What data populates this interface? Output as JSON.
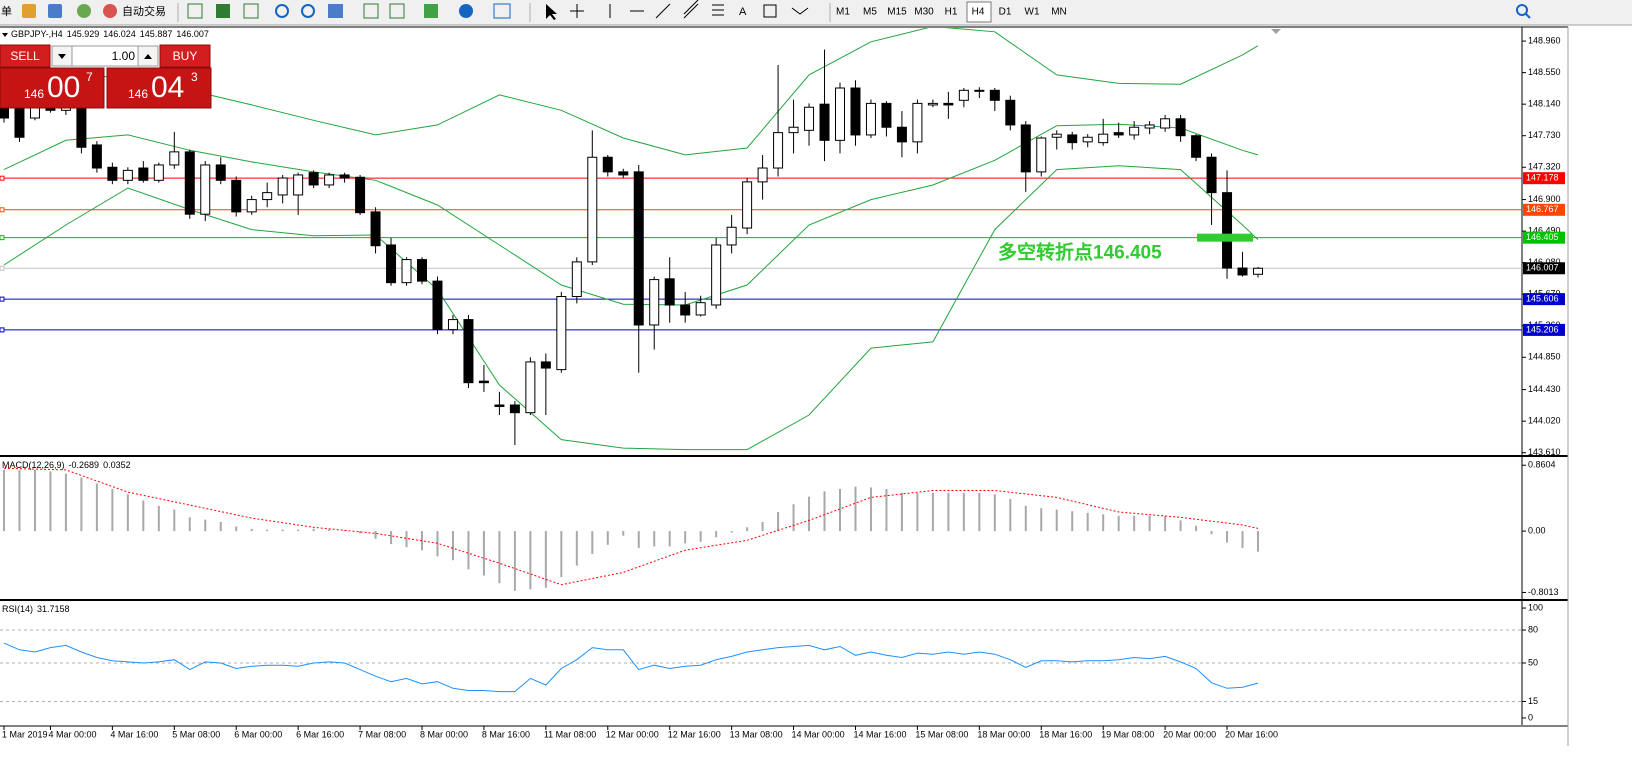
{
  "toolbar": {
    "menu_fragment": "单",
    "auto_trading": "自动交易",
    "timeframes": [
      "M1",
      "M5",
      "M15",
      "M30",
      "H1",
      "H4",
      "D1",
      "W1",
      "MN"
    ],
    "active_timeframe": "H4"
  },
  "trade_panel": {
    "sell": "SELL",
    "buy": "BUY",
    "lots": "1.00",
    "sell_price": {
      "big_figure": "146",
      "pips": "00",
      "fraction": "7"
    },
    "buy_price": {
      "big_figure": "146",
      "pips": "04",
      "fraction": "3"
    }
  },
  "chart_data": [
    {
      "type": "candlestick",
      "title": "GBPJPY-,H4",
      "categories": [
        "1 Mar 2019",
        null,
        null,
        "4 Mar 00:00",
        null,
        null,
        null,
        "4 Mar 16:00",
        null,
        null,
        null,
        "5 Mar 08:00",
        null,
        null,
        null,
        "6 Mar 00:00",
        null,
        null,
        null,
        "6 Mar 16:00",
        null,
        null,
        null,
        "7 Mar 08:00",
        null,
        null,
        null,
        "8 Mar 00:00",
        null,
        null,
        null,
        "8 Mar 16:00",
        null,
        null,
        null,
        "11 Mar 08:00",
        null,
        null,
        null,
        "12 Mar 00:00",
        null,
        null,
        null,
        "12 Mar 16:00",
        null,
        null,
        null,
        "13 Mar 08:00",
        null,
        null,
        null,
        "14 Mar 00:00",
        null,
        null,
        null,
        "14 Mar 16:00",
        null,
        null,
        null,
        "15 Mar 08:00",
        null,
        null,
        null,
        "18 Mar 00:00",
        null,
        null,
        null,
        "18 Mar 16:00",
        null,
        null,
        null,
        "19 Mar 08:00",
        null,
        null,
        null,
        "20 Mar 00:00",
        null,
        null,
        null,
        "20 Mar 16:00",
        null,
        null
      ],
      "open": [
        148.09,
        148.09,
        147.96,
        148.09,
        148.06,
        148.09,
        147.61,
        147.32,
        147.15,
        147.31,
        147.15,
        147.35,
        147.52,
        146.71,
        147.35,
        147.15,
        146.74,
        146.9,
        146.96,
        146.96,
        147.25,
        147.09,
        147.22,
        147.19,
        146.74,
        146.31,
        145.82,
        146.12,
        145.84,
        145.21,
        145.34,
        144.54,
        144.23,
        144.23,
        144.13,
        144.79,
        144.69,
        145.64,
        146.09,
        147.45,
        147.26,
        147.26,
        145.27,
        145.87,
        145.53,
        145.4,
        145.53,
        146.31,
        146.53,
        147.13,
        147.31,
        147.77,
        147.8,
        148.14,
        147.67,
        148.35,
        147.74,
        148.15,
        147.84,
        147.65,
        148.13,
        148.15,
        148.19,
        148.32,
        148.32,
        148.19,
        147.87,
        147.26,
        147.71,
        147.74,
        147.65,
        147.64,
        147.77,
        147.74,
        147.83,
        147.83,
        147.95,
        147.73,
        147.45,
        146.99,
        146.01,
        145.929
      ],
      "high": [
        148.15,
        148.12,
        148.12,
        148.14,
        148.12,
        148.22,
        147.66,
        147.38,
        147.32,
        147.4,
        147.38,
        147.78,
        147.55,
        147.4,
        147.45,
        147.2,
        146.95,
        147.12,
        147.22,
        147.25,
        147.28,
        147.25,
        147.25,
        147.22,
        146.8,
        146.4,
        146.15,
        146.15,
        145.9,
        145.4,
        145.4,
        144.75,
        144.4,
        144.28,
        144.85,
        144.9,
        145.7,
        146.15,
        147.8,
        147.48,
        147.3,
        147.35,
        145.9,
        146.15,
        145.7,
        145.65,
        146.4,
        146.7,
        147.18,
        147.48,
        148.65,
        148.2,
        148.15,
        148.85,
        148.42,
        148.45,
        148.2,
        148.18,
        148.05,
        148.2,
        148.2,
        148.3,
        148.35,
        148.36,
        148.35,
        148.25,
        147.92,
        147.72,
        147.8,
        147.78,
        147.75,
        147.95,
        147.9,
        147.92,
        147.92,
        148.0,
        148.0,
        147.75,
        147.5,
        147.28,
        146.22,
        146.024
      ],
      "low": [
        147.9,
        147.65,
        147.93,
        148.03,
        148.0,
        147.5,
        147.25,
        147.1,
        147.1,
        147.12,
        147.12,
        147.3,
        146.65,
        146.62,
        147.1,
        146.68,
        146.7,
        146.8,
        146.85,
        146.7,
        147.05,
        147.05,
        147.12,
        146.7,
        146.2,
        145.78,
        145.78,
        145.8,
        145.15,
        145.15,
        144.45,
        144.4,
        144.1,
        143.71,
        144.1,
        144.1,
        144.65,
        145.55,
        146.05,
        147.2,
        147.18,
        144.65,
        144.95,
        145.3,
        145.3,
        145.38,
        145.48,
        146.2,
        146.45,
        146.9,
        147.2,
        147.5,
        147.6,
        147.4,
        147.5,
        147.6,
        147.7,
        147.72,
        147.45,
        147.5,
        148.1,
        147.95,
        148.1,
        148.22,
        148.05,
        147.8,
        147.0,
        147.2,
        147.55,
        147.55,
        147.58,
        147.6,
        147.7,
        147.68,
        147.75,
        147.78,
        147.65,
        147.4,
        146.57,
        145.87,
        145.9,
        145.887
      ],
      "close": [
        147.96,
        147.71,
        148.09,
        148.06,
        148.09,
        147.58,
        147.31,
        147.15,
        147.28,
        147.15,
        147.35,
        147.52,
        146.71,
        147.35,
        147.15,
        146.74,
        146.9,
        146.99,
        147.18,
        147.22,
        147.09,
        147.22,
        147.18,
        146.73,
        146.3,
        145.82,
        146.12,
        145.84,
        145.21,
        145.34,
        144.52,
        144.52,
        144.21,
        144.13,
        144.79,
        144.71,
        145.64,
        146.09,
        147.45,
        147.26,
        147.22,
        145.27,
        145.86,
        145.53,
        145.4,
        145.56,
        146.31,
        146.54,
        147.13,
        147.31,
        147.77,
        147.84,
        148.1,
        147.67,
        148.35,
        147.74,
        148.15,
        147.84,
        147.65,
        148.15,
        148.15,
        148.13,
        148.32,
        148.32,
        148.19,
        147.87,
        147.26,
        147.7,
        147.75,
        147.64,
        147.71,
        147.75,
        147.74,
        147.84,
        147.87,
        147.95,
        147.73,
        147.45,
        146.99,
        146.01,
        145.92,
        146.007
      ],
      "up_color": "#ffffff",
      "down_color": "#000000",
      "bands": {
        "color": "#21a63c",
        "x": [
          0,
          4,
          8,
          12,
          16,
          20,
          24,
          28,
          32,
          36,
          40,
          44,
          48,
          52,
          56,
          60,
          64,
          68,
          72,
          76,
          80,
          81
        ],
        "upper": [
          148.64,
          148.58,
          148.45,
          148.32,
          148.13,
          147.93,
          147.74,
          147.87,
          148.26,
          148.06,
          147.7,
          147.48,
          147.57,
          148.52,
          148.95,
          149.15,
          149.08,
          148.52,
          148.41,
          148.4,
          148.78,
          148.9
        ],
        "middle": [
          147.29,
          147.67,
          147.74,
          147.54,
          147.39,
          147.26,
          147.15,
          146.83,
          146.31,
          145.79,
          145.54,
          145.53,
          145.79,
          146.57,
          146.9,
          147.09,
          147.41,
          147.86,
          147.88,
          147.83,
          147.54,
          147.48
        ],
        "lower": [
          146.05,
          146.57,
          147.05,
          146.77,
          146.51,
          146.43,
          146.44,
          145.73,
          144.49,
          143.78,
          143.67,
          143.65,
          143.65,
          144.1,
          144.97,
          145.05,
          146.51,
          147.29,
          147.34,
          147.29,
          146.57,
          146.38
        ]
      },
      "levels": [
        {
          "value": 147.178,
          "color": "#ff0000",
          "box_color": "#ff0000"
        },
        {
          "value": 146.767,
          "color": "#ff4500",
          "box_color": "#ff4500"
        },
        {
          "value": 146.405,
          "color": "#00c000",
          "box_color": "#00c000"
        },
        {
          "value": 146.007,
          "color": "#c0c0c0",
          "box_color": "#000000"
        },
        {
          "value": 145.606,
          "color": "#0000cd",
          "box_color": "#0000cd"
        },
        {
          "value": 145.206,
          "color": "#0000cd",
          "box_color": "#0000cd"
        }
      ],
      "annotation": {
        "text": "多空转折点146.405",
        "color": "#2ecc2e",
        "level": 2
      },
      "ylim": [
        143.58,
        149.13
      ],
      "yticks": [
        {
          "value": 148.96,
          "label": "148.960"
        },
        {
          "value": 148.55,
          "label": "148.550"
        },
        {
          "value": 148.14,
          "label": "148.140"
        },
        {
          "value": 147.73,
          "label": "147.730"
        },
        {
          "value": 147.32,
          "label": "147.320"
        },
        {
          "value": 146.9,
          "label": "146.900"
        },
        {
          "value": 146.49,
          "label": "146.490"
        },
        {
          "value": 146.08,
          "label": "146.080"
        },
        {
          "value": 145.67,
          "label": "145.670"
        },
        {
          "value": 145.26,
          "label": "145.260"
        },
        {
          "value": 144.85,
          "label": "144.850"
        },
        {
          "value": 144.43,
          "label": "144.430"
        },
        {
          "value": 144.02,
          "label": "144.020"
        },
        {
          "value": 143.61,
          "label": "143.610"
        }
      ]
    },
    {
      "type": "macd",
      "title": "MACD(12,26,9)",
      "color": "#a8a8a8",
      "values": [
        0.8,
        0.8,
        0.8,
        0.78,
        0.75,
        0.7,
        0.62,
        0.55,
        0.48,
        0.4,
        0.33,
        0.28,
        0.18,
        0.15,
        0.12,
        0.06,
        0.03,
        0.02,
        0.02,
        0.02,
        0.03,
        0.02,
        0.01,
        -0.03,
        -0.1,
        -0.17,
        -0.21,
        -0.25,
        -0.33,
        -0.38,
        -0.5,
        -0.58,
        -0.68,
        -0.78,
        -0.76,
        -0.74,
        -0.6,
        -0.45,
        -0.3,
        -0.18,
        -0.06,
        -0.22,
        -0.2,
        -0.2,
        -0.16,
        -0.14,
        -0.08,
        -0.02,
        0.05,
        0.12,
        0.25,
        0.35,
        0.45,
        0.52,
        0.55,
        0.58,
        0.57,
        0.55,
        0.5,
        0.5,
        0.5,
        0.5,
        0.5,
        0.5,
        0.48,
        0.42,
        0.33,
        0.3,
        0.28,
        0.26,
        0.24,
        0.22,
        0.2,
        0.2,
        0.2,
        0.2,
        0.14,
        0.07,
        -0.04,
        -0.15,
        -0.22,
        -0.2689
      ],
      "signal": {
        "color": "#ff0000",
        "x": [
          0,
          4,
          8,
          12,
          16,
          20,
          24,
          28,
          32,
          36,
          40,
          44,
          48,
          52,
          56,
          60,
          64,
          68,
          72,
          76,
          80,
          81
        ],
        "values": [
          0.82,
          0.8,
          0.51,
          0.34,
          0.17,
          0.05,
          -0.03,
          -0.16,
          -0.42,
          -0.7,
          -0.54,
          -0.25,
          -0.12,
          0.14,
          0.44,
          0.53,
          0.53,
          0.44,
          0.25,
          0.18,
          0.08,
          0.0352
        ]
      },
      "ylim": [
        -0.874,
        0.955
      ],
      "yticks": [
        0.8604,
        {
          "value": 0,
          "label": "0.00"
        },
        -0.8013
      ]
    },
    {
      "type": "line",
      "title": "RSI(14)",
      "color": "#1e90ff",
      "values": [
        68,
        62,
        60,
        64,
        66,
        60,
        55,
        52,
        51,
        50,
        51,
        53,
        44,
        51,
        50,
        45,
        47,
        48,
        48,
        47,
        50,
        51,
        50,
        44,
        38,
        33,
        36,
        31,
        33,
        27,
        25,
        25,
        24,
        24,
        36,
        30,
        45,
        53,
        64,
        62,
        62,
        44,
        48,
        45,
        47,
        48,
        53,
        56,
        60,
        62,
        64,
        65,
        66,
        62,
        65,
        57,
        60,
        57,
        55,
        59,
        58,
        60,
        58,
        60,
        58,
        53,
        46,
        52,
        52,
        51,
        52,
        52,
        53,
        55,
        54,
        56,
        51,
        45,
        32,
        27,
        28,
        31.7158
      ],
      "levels": [
        80,
        50,
        15
      ],
      "ylim": [
        -6.4,
        105.5
      ],
      "yticks": [
        100,
        80,
        50,
        15,
        0
      ]
    }
  ]
}
